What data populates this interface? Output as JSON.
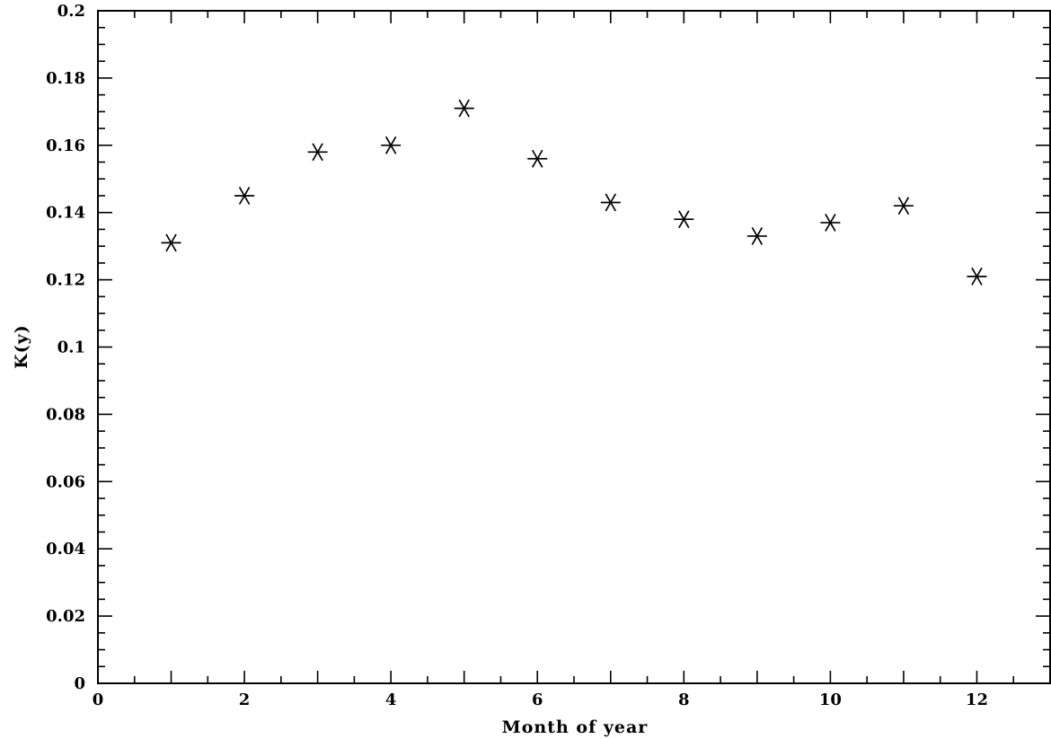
{
  "chart_data": {
    "type": "scatter",
    "marker": "asterisk",
    "xlabel": "Month of year",
    "ylabel": "K(y)",
    "xlim": [
      0,
      13
    ],
    "ylim": [
      0,
      0.2
    ],
    "x_ticks": [
      0,
      2,
      4,
      6,
      8,
      10,
      12
    ],
    "x_tick_labels": [
      "0",
      "2",
      "4",
      "6",
      "8",
      "10",
      "12"
    ],
    "y_ticks": [
      0,
      0.02,
      0.04,
      0.06,
      0.08,
      0.1,
      0.12,
      0.14,
      0.16,
      0.18,
      0.2
    ],
    "y_tick_labels": [
      "0",
      "0.02",
      "0.04",
      "0.06",
      "0.08",
      "0.1",
      "0.12",
      "0.14",
      "0.16",
      "0.18",
      "0.2"
    ],
    "grid": false,
    "series": [
      {
        "x": [
          1,
          2,
          3,
          4,
          5,
          6,
          7,
          8,
          9,
          10,
          11,
          12
        ],
        "y": [
          0.131,
          0.145,
          0.158,
          0.16,
          0.171,
          0.156,
          0.143,
          0.138,
          0.133,
          0.137,
          0.142,
          0.121
        ]
      }
    ],
    "colors": {
      "marker": "#000000",
      "axis": "#000000",
      "background": "#ffffff"
    }
  }
}
